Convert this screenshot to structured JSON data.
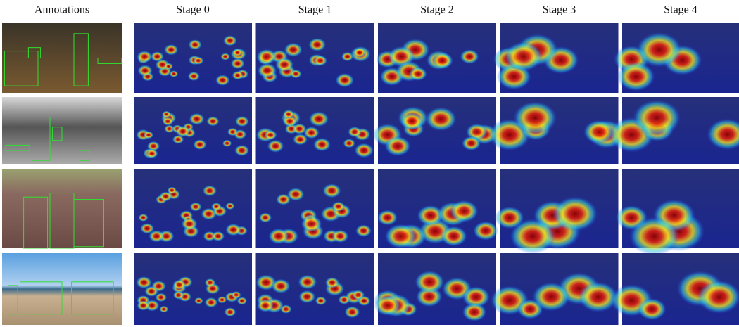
{
  "columns": [
    "Annotations",
    "Stage 0",
    "Stage 1",
    "Stage 2",
    "Stage 3",
    "Stage 4"
  ]
}
